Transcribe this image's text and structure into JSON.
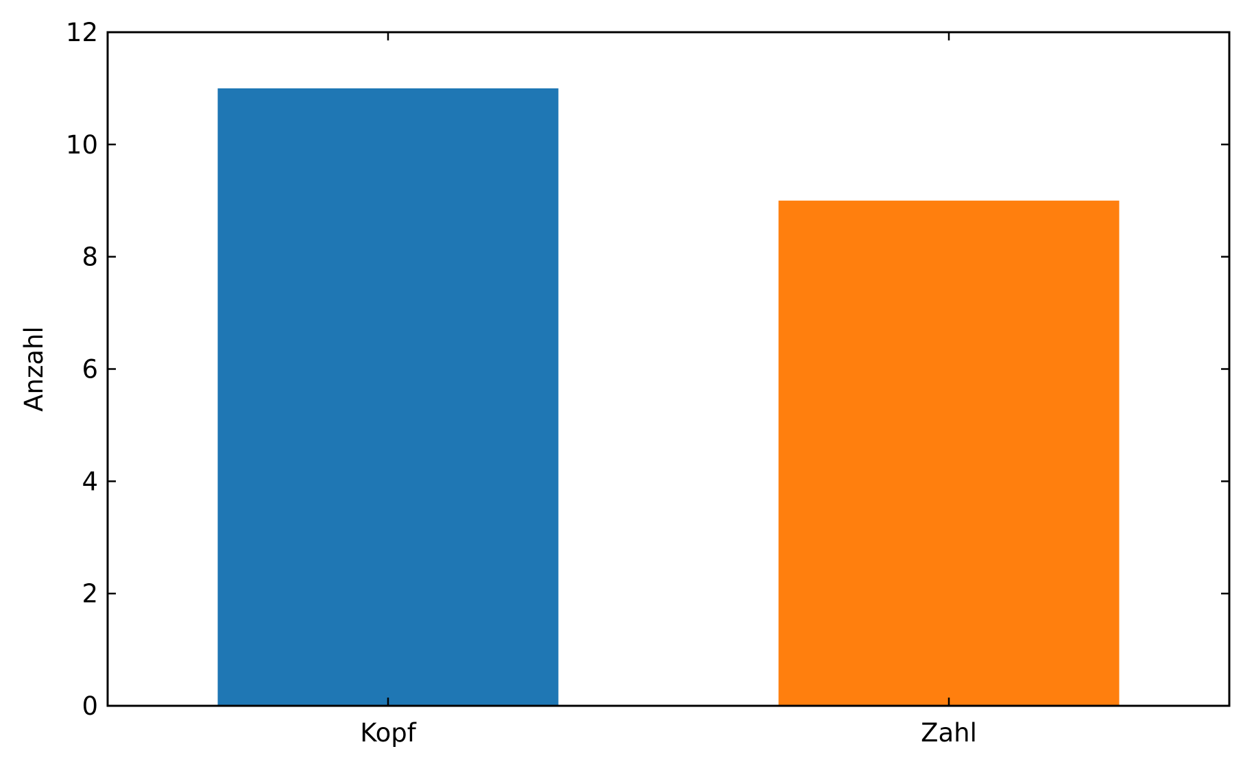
{
  "chart_data": {
    "type": "bar",
    "categories": [
      "Kopf",
      "Zahl"
    ],
    "values": [
      11,
      9
    ],
    "colors": [
      "#1f77b4",
      "#ff7f0e"
    ],
    "title": "",
    "xlabel": "",
    "ylabel": "Anzahl",
    "ylim": [
      0,
      12
    ],
    "yticks": [
      0,
      2,
      4,
      6,
      8,
      10,
      12
    ],
    "grid": false,
    "legend": "none"
  }
}
